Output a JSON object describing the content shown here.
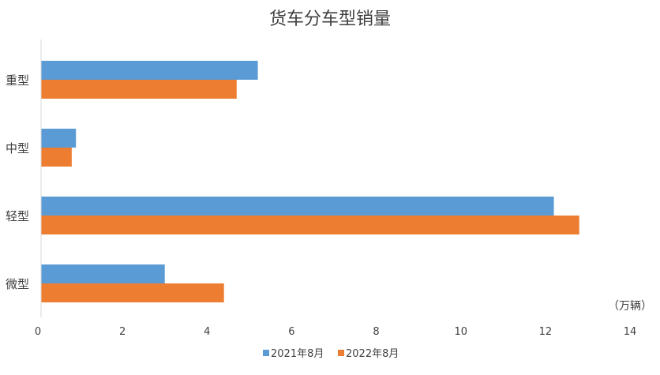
{
  "chart_data": {
    "type": "bar",
    "orientation": "horizontal",
    "title": "货车分车型销量",
    "unit_label": "（万辆）",
    "categories": [
      "重型",
      "中型",
      "轻型",
      "微型"
    ],
    "series": [
      {
        "name": "2021年8月",
        "color": "#5B9BD5",
        "values": [
          5.2,
          0.9,
          12.2,
          3.0
        ]
      },
      {
        "name": "2022年8月",
        "color": "#ED7D31",
        "values": [
          4.7,
          0.8,
          12.8,
          4.4
        ]
      }
    ],
    "xlim": [
      0,
      14
    ],
    "x_ticks": [
      "0",
      "2",
      "4",
      "6",
      "8",
      "10",
      "12",
      "14"
    ],
    "legend_position": "bottom",
    "grid": false
  }
}
